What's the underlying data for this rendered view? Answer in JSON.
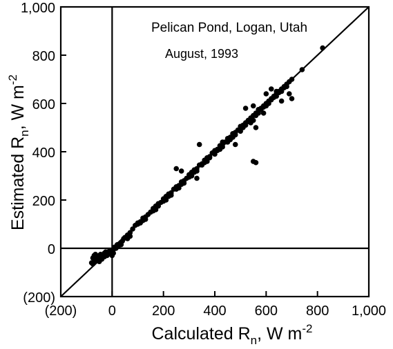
{
  "chart_data": {
    "type": "scatter",
    "title": "Pelican Pond, Logan, Utah",
    "subtitle": "August, 1993",
    "xlabel": {
      "main": "Calculated R",
      "sub": "n",
      "unit": ", W m",
      "sup": "-2"
    },
    "ylabel": {
      "main": "Estimated R",
      "sub": "n",
      "unit": ", W m",
      "sup": "-2"
    },
    "xlim": [
      -200,
      1000
    ],
    "ylim": [
      -200,
      1000
    ],
    "x_ticks": [
      -200,
      0,
      200,
      400,
      600,
      800,
      1000
    ],
    "y_ticks": [
      -200,
      0,
      200,
      400,
      600,
      800,
      1000
    ],
    "x_tick_labels": [
      "(200)",
      "0",
      "200",
      "400",
      "600",
      "800",
      "1,000"
    ],
    "y_tick_labels": [
      "(200)",
      "0",
      "200",
      "400",
      "600",
      "800",
      "1,000"
    ],
    "zero_lines": true,
    "grid": false,
    "reference_line": {
      "type": "1:1",
      "from": [
        -200,
        -200
      ],
      "to": [
        1000,
        1000
      ]
    },
    "series": [
      {
        "x": [
          -80,
          -75,
          -70,
          -65,
          -60,
          -55,
          -50,
          -45,
          -40,
          -35,
          -30,
          -25,
          -20,
          -15,
          -10,
          -5,
          0,
          5,
          10,
          15,
          20,
          25,
          30,
          35,
          40,
          45,
          50,
          60,
          70,
          80,
          90,
          100,
          110,
          120,
          130,
          140,
          150,
          160,
          170,
          180,
          190,
          200,
          210,
          220,
          230,
          240,
          250,
          260,
          270,
          280,
          290,
          300,
          310,
          320,
          330,
          340,
          350,
          360,
          370,
          380,
          390,
          400,
          410,
          420,
          430,
          440,
          450,
          460,
          470,
          480,
          490,
          500,
          510,
          520,
          530,
          540,
          550,
          560,
          570,
          580,
          590,
          600,
          610,
          620,
          630,
          640,
          650,
          660,
          670,
          680,
          690,
          700,
          740,
          820,
          540,
          550,
          560,
          570,
          580,
          590,
          600,
          610,
          620,
          630,
          640,
          650,
          660,
          670,
          680,
          690,
          500,
          510,
          520,
          530,
          450,
          460,
          470,
          480,
          400,
          410,
          420,
          430,
          350,
          360,
          370,
          380,
          300,
          310,
          320,
          330,
          250,
          260,
          270,
          280,
          200,
          210,
          220,
          230,
          150,
          160,
          170,
          180,
          100,
          110,
          120,
          130,
          520,
          550,
          560,
          590,
          550,
          560,
          700,
          660,
          340,
          250,
          270,
          330,
          430,
          470,
          480,
          600,
          620,
          640,
          60,
          70,
          30,
          20,
          10,
          -10,
          -20,
          -30,
          -40,
          -50,
          -60,
          -70,
          -75,
          -65,
          0,
          5,
          15,
          25,
          35
        ],
        "y": [
          -60,
          -40,
          -30,
          -50,
          -35,
          -45,
          -30,
          -25,
          -40,
          -30,
          -20,
          -15,
          -30,
          -25,
          -10,
          -20,
          -10,
          -5,
          0,
          5,
          10,
          15,
          20,
          25,
          30,
          40,
          45,
          55,
          65,
          80,
          95,
          105,
          110,
          125,
          130,
          140,
          150,
          165,
          175,
          185,
          190,
          205,
          215,
          225,
          230,
          245,
          255,
          260,
          275,
          280,
          290,
          305,
          315,
          325,
          330,
          345,
          350,
          365,
          375,
          380,
          395,
          405,
          410,
          425,
          430,
          440,
          455,
          460,
          475,
          480,
          490,
          505,
          510,
          520,
          530,
          540,
          550,
          560,
          575,
          580,
          590,
          600,
          610,
          620,
          630,
          640,
          650,
          660,
          670,
          680,
          690,
          700,
          740,
          830,
          520,
          530,
          550,
          560,
          575,
          585,
          590,
          600,
          615,
          625,
          630,
          645,
          650,
          665,
          670,
          640,
          485,
          500,
          510,
          525,
          440,
          450,
          465,
          470,
          390,
          405,
          410,
          420,
          345,
          355,
          360,
          375,
          295,
          300,
          315,
          320,
          245,
          250,
          265,
          270,
          195,
          200,
          215,
          220,
          150,
          155,
          160,
          175,
          100,
          105,
          115,
          120,
          580,
          590,
          500,
          560,
          360,
          355,
          620,
          610,
          430,
          330,
          320,
          290,
          440,
          460,
          430,
          640,
          660,
          650,
          40,
          50,
          20,
          15,
          5,
          -15,
          -25,
          -35,
          -45,
          -55,
          -50,
          -45,
          -65,
          -25,
          -30,
          -20,
          0,
          10,
          15
        ]
      }
    ]
  }
}
